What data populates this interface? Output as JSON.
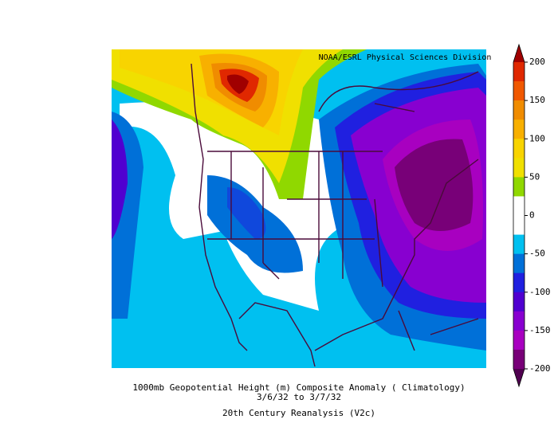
{
  "credit": "NOAA/ESRL Physical Sciences Division",
  "caption": [
    "1000mb Geopotential Height (m) Composite Anomaly ( Climatology)",
    "3/6/32  to 3/7/32",
    "20th Century Reanalysis (V2c)"
  ],
  "colorbar": {
    "ticks": [
      200,
      150,
      100,
      50,
      0,
      -50,
      -100,
      -150,
      -200
    ],
    "colors": [
      "#e02800",
      "#f05800",
      "#f08c00",
      "#f8b000",
      "#f8d400",
      "#f0e000",
      "#90d800",
      "#ffffff",
      "#ffffff",
      "#00c0f0",
      "#0070d8",
      "#2020e0",
      "#5000d0",
      "#8800d0",
      "#a800c0",
      "#780078"
    ],
    "over_color": "#a00000",
    "under_color": "#500050"
  }
}
